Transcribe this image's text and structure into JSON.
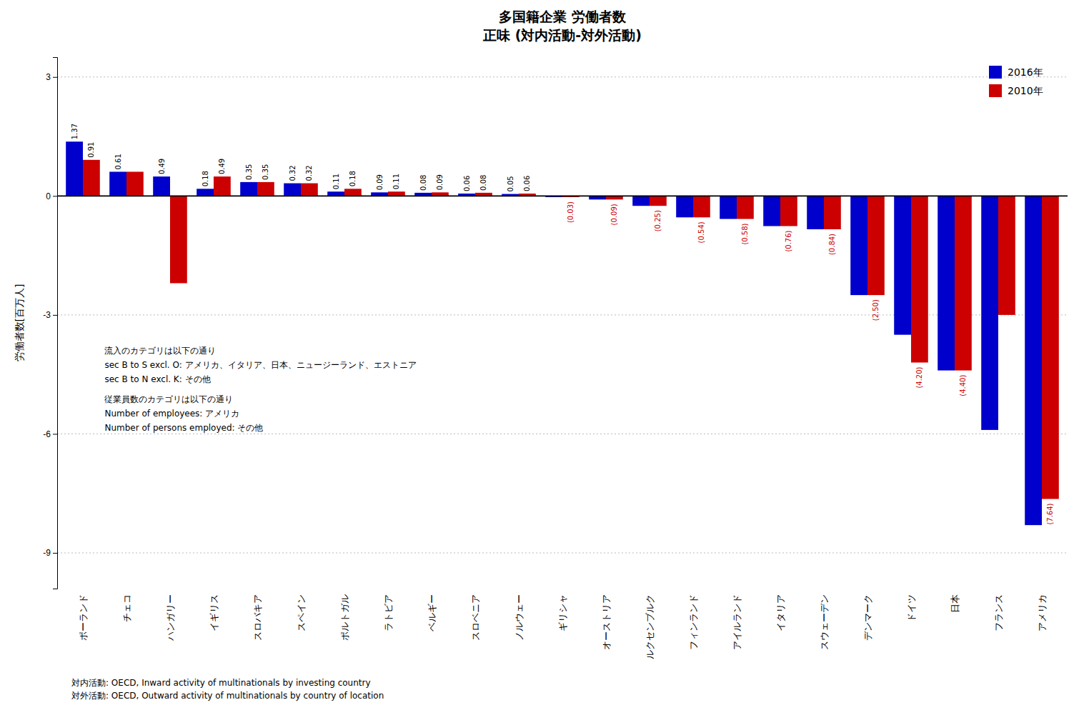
{
  "chart_data": {
    "type": "bar",
    "title": "多国籍企業 労働者数",
    "subtitle": "正味 (対内活動-対外活動)",
    "y_label": "労働者数[百万人]",
    "categories": [
      "ポーランド",
      "チェコ",
      "ハンガリー",
      "イギリス",
      "スロバキア",
      "スペイン",
      "ポルトガル",
      "ラトビア",
      "ベルギー",
      "スロベニア",
      "ノルウェー",
      "ギリシャ",
      "オーストリア",
      "ルクセンブルク",
      "フィンランド",
      "アイルランド",
      "イタリア",
      "スウェーデン",
      "デンマーク",
      "ドイツ",
      "日本",
      "フランス",
      "アメリカ"
    ],
    "series": [
      {
        "name": "2016年",
        "color": "#0000cc",
        "values": [
          1.37,
          0.61,
          0.49,
          0.18,
          0.35,
          0.32,
          0.11,
          0.09,
          0.08,
          0.06,
          0.05,
          -0.03,
          -0.09,
          -0.25,
          -0.54,
          -0.58,
          -0.76,
          -0.84,
          -2.5,
          -3.5,
          -4.4,
          -5.9,
          -8.3
        ],
        "value_labels": [
          "1.37",
          "0.61",
          "0.49",
          "0.18",
          "0.35",
          "0.32",
          "0.11",
          "0.09",
          "0.08",
          "0.06",
          "0.05",
          null,
          null,
          null,
          null,
          null,
          null,
          null,
          null,
          null,
          null,
          null,
          null
        ]
      },
      {
        "name": "2010年",
        "color": "#cc0000",
        "values": [
          0.91,
          0.61,
          -2.2,
          0.49,
          0.35,
          0.32,
          0.18,
          0.11,
          0.09,
          0.08,
          0.06,
          -0.03,
          -0.09,
          -0.25,
          -0.54,
          -0.58,
          -0.76,
          -0.84,
          -2.5,
          -4.2,
          -4.4,
          -3.0,
          -7.64
        ],
        "value_labels": [
          "0.91",
          null,
          null,
          "0.49",
          "0.35",
          "0.32",
          "0.18",
          "0.11",
          "0.09",
          "0.08",
          "0.06",
          "(0.03)",
          "(0.09)",
          "(0.25)",
          "(0.54)",
          "(0.58)",
          "(0.76)",
          "(0.84)",
          "(2.50)",
          "(4.20)",
          "(4.40)",
          null,
          "(7.64)"
        ]
      }
    ],
    "ylim": [
      -9.9,
      3.5
    ],
    "yticks": [
      3,
      0,
      -3,
      -6,
      -9
    ],
    "grid": true,
    "legend": "upper right",
    "data_labels": true,
    "annotations": [
      "流入のカテゴリは以下の通り",
      "sec B to S excl. O: アメリカ、イタリア、日本、ニュージーランド、エストニア",
      "sec B to N excl. K: その他",
      "従業員数のカテゴリは以下の通り",
      "Number of employees: アメリカ",
      "Number of persons employed: その他"
    ],
    "footnotes": [
      "対内活動: OECD, Inward activity of multinationals by investing country",
      "対外活動: OECD, Outward activity of multinationals by country of location"
    ]
  }
}
